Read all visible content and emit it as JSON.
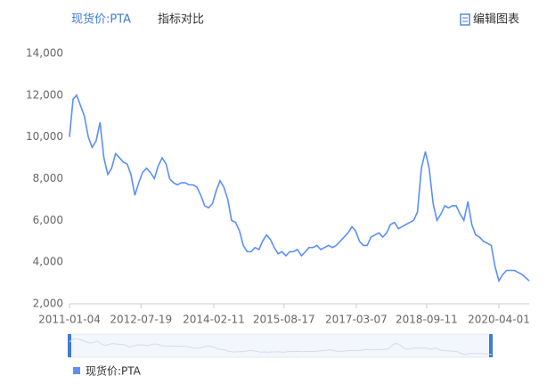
{
  "tabs": [
    "现货价:PTA",
    "指标对比"
  ],
  "edit_button": "编辑图表",
  "chart_data": {
    "type": "line",
    "x": [
      "2011-01-04",
      "2011-02-01",
      "2011-03-01",
      "2011-04-01",
      "2011-05-01",
      "2011-06-01",
      "2011-07-01",
      "2011-08-01",
      "2011-09-01",
      "2011-10-01",
      "2011-11-01",
      "2011-12-01",
      "2012-01-01",
      "2012-02-01",
      "2012-03-01",
      "2012-04-01",
      "2012-05-01",
      "2012-06-01",
      "2012-07-01",
      "2012-08-01",
      "2012-09-01",
      "2012-10-01",
      "2012-11-01",
      "2012-12-01",
      "2013-01-01",
      "2013-02-01",
      "2013-03-01",
      "2013-04-01",
      "2013-05-01",
      "2013-06-01",
      "2013-07-01",
      "2013-08-01",
      "2013-09-01",
      "2013-10-01",
      "2013-11-01",
      "2013-12-01",
      "2014-01-01",
      "2014-02-01",
      "2014-03-01",
      "2014-04-01",
      "2014-05-01",
      "2014-06-01",
      "2014-07-01",
      "2014-08-01",
      "2014-09-01",
      "2014-10-01",
      "2014-11-01",
      "2014-12-01",
      "2015-01-01",
      "2015-02-01",
      "2015-03-01",
      "2015-04-01",
      "2015-05-01",
      "2015-06-01",
      "2015-07-01",
      "2015-08-01",
      "2015-09-01",
      "2015-10-01",
      "2015-11-01",
      "2015-12-01",
      "2016-01-01",
      "2016-02-01",
      "2016-03-01",
      "2016-04-01",
      "2016-05-01",
      "2016-06-01",
      "2016-07-01",
      "2016-08-01",
      "2016-09-01",
      "2016-10-01",
      "2016-11-01",
      "2016-12-01",
      "2017-01-01",
      "2017-02-01",
      "2017-03-01",
      "2017-04-01",
      "2017-05-01",
      "2017-06-01",
      "2017-07-01",
      "2017-08-01",
      "2017-09-01",
      "2017-10-01",
      "2017-11-01",
      "2017-12-01",
      "2018-01-01",
      "2018-02-01",
      "2018-03-01",
      "2018-04-01",
      "2018-05-01",
      "2018-06-01",
      "2018-07-01",
      "2018-08-01",
      "2018-09-01",
      "2018-10-01",
      "2018-11-01",
      "2018-12-01",
      "2019-01-01",
      "2019-02-01",
      "2019-03-01",
      "2019-04-01",
      "2019-05-01",
      "2019-06-01",
      "2019-07-01",
      "2019-08-01",
      "2019-09-01",
      "2019-10-01",
      "2019-11-01",
      "2019-12-01",
      "2020-01-01",
      "2020-02-01",
      "2020-03-01",
      "2020-04-01",
      "2020-05-01",
      "2020-06-01",
      "2020-07-01",
      "2020-08-01",
      "2020-09-01",
      "2020-10-01",
      "2020-11-25"
    ],
    "series": [
      {
        "name": "现货价:PTA",
        "color": "#5b8ff9",
        "values": [
          10000,
          11800,
          12000,
          11500,
          11000,
          10000,
          9500,
          9800,
          10700,
          9000,
          8200,
          8500,
          9200,
          9000,
          8800,
          8700,
          8200,
          7200,
          7800,
          8300,
          8500,
          8300,
          8000,
          8600,
          9000,
          8700,
          8000,
          7800,
          7700,
          7800,
          7800,
          7700,
          7700,
          7600,
          7200,
          6700,
          6600,
          6800,
          7400,
          7900,
          7600,
          7000,
          6000,
          5900,
          5500,
          4800,
          4500,
          4500,
          4700,
          4600,
          5000,
          5300,
          5100,
          4700,
          4400,
          4500,
          4300,
          4500,
          4500,
          4600,
          4300,
          4500,
          4700,
          4700,
          4800,
          4600,
          4700,
          4800,
          4700,
          4800,
          5000,
          5200,
          5400,
          5700,
          5500,
          5000,
          4800,
          4800,
          5200,
          5300,
          5400,
          5200,
          5400,
          5800,
          5900,
          5600,
          5700,
          5800,
          5900,
          6000,
          6400,
          8500,
          9300,
          8500,
          6800,
          6000,
          6300,
          6700,
          6600,
          6700,
          6700,
          6300,
          6000,
          6900,
          5800,
          5300,
          5200,
          5000,
          4900,
          4800,
          3800,
          3100,
          3400,
          3600,
          3600,
          3600,
          3500,
          3400,
          3100
        ]
      }
    ],
    "xlim": [
      "2011-01-04",
      "2020-11-25"
    ],
    "xticks": [
      "2011-01-04",
      "2012-07-19",
      "2014-02-11",
      "2015-08-17",
      "2017-03-07",
      "2018-09-11",
      "2020-04-01"
    ],
    "ylim": [
      2000,
      14000
    ],
    "yticks": [
      {
        "value": 2000,
        "label": "2,000"
      },
      {
        "value": 4000,
        "label": "4,000"
      },
      {
        "value": 6000,
        "label": "6,000"
      },
      {
        "value": 8000,
        "label": "8,000"
      },
      {
        "value": 10000,
        "label": "10,000"
      },
      {
        "value": 12000,
        "label": "12,000"
      },
      {
        "value": 14000,
        "label": "14,000"
      }
    ],
    "grid": false
  }
}
